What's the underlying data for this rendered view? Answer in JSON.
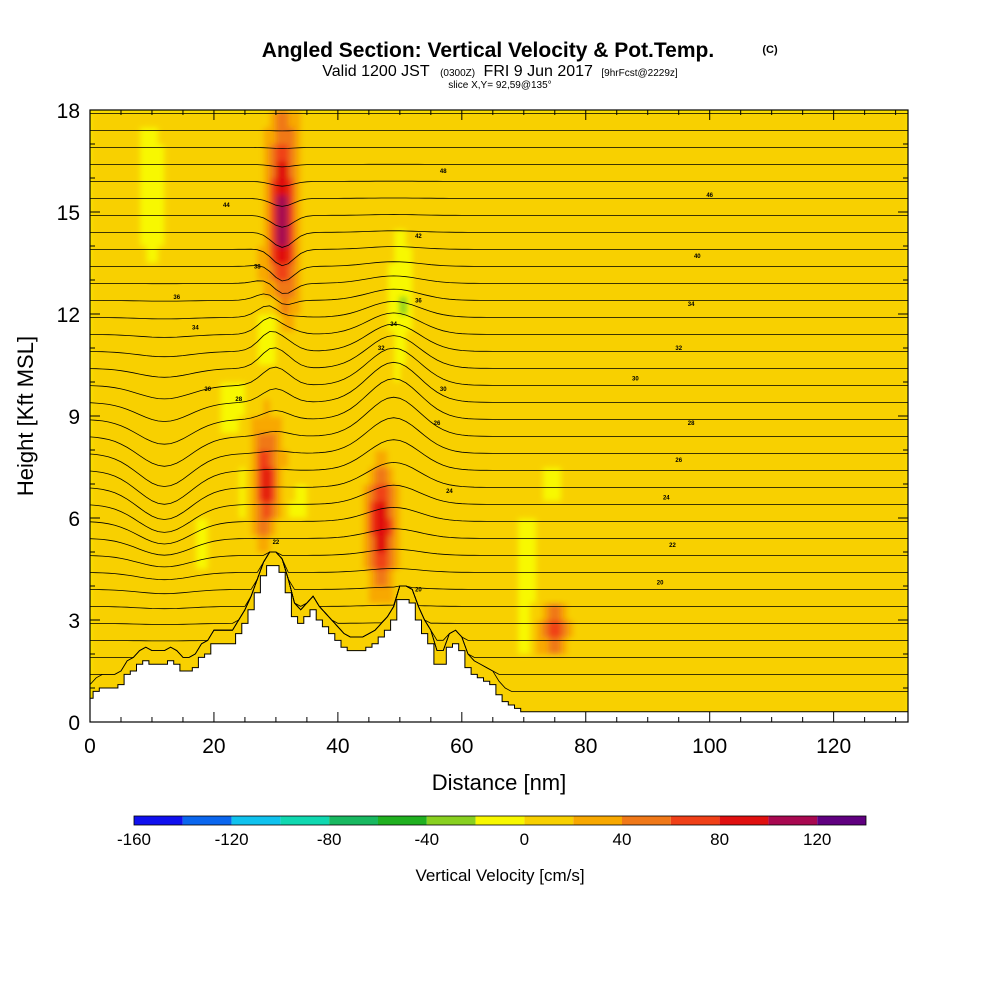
{
  "chart_data": {
    "type": "heatmap",
    "title": "Angled Section: Vertical Velocity & Pot.Temp.",
    "title_mark": "(C)",
    "subtitle": {
      "valid": "Valid 1200 JST",
      "utc": "(0300Z)",
      "date": "FRI 9 Jun 2017",
      "forecast": "[9hrFcst@2229z]",
      "slice": "slice X,Y= 92,59@135°"
    },
    "xlabel": "Distance [nm]",
    "ylabel": "Height [Kft MSL]",
    "xlim": [
      0,
      132
    ],
    "ylim": [
      0,
      18
    ],
    "x_ticks": [
      0,
      20,
      40,
      60,
      80,
      100,
      120
    ],
    "y_ticks": [
      0,
      3,
      6,
      9,
      12,
      15,
      18
    ],
    "colorbar": {
      "label": "Vertical Velocity [cm/s]",
      "levels": [
        -160,
        -140,
        -120,
        -100,
        -80,
        -60,
        -40,
        -20,
        0,
        20,
        40,
        60,
        80,
        100,
        120,
        140
      ],
      "colors": [
        "#1010ee",
        "#0a66ee",
        "#10c2ee",
        "#10d8b0",
        "#18b860",
        "#20b020",
        "#88d020",
        "#f8f800",
        "#f8d000",
        "#f8a800",
        "#f07818",
        "#f04018",
        "#e01010",
        "#a80850",
        "#600080"
      ],
      "tick_labels": [
        -160,
        -120,
        -80,
        -40,
        0,
        40,
        80,
        120
      ]
    },
    "background_field": {
      "name": "Vertical Velocity",
      "units": "cm/s",
      "dominant_range": [
        0,
        20
      ]
    },
    "updrafts": [
      {
        "x": 31,
        "z_range": [
          12.5,
          17.5
        ],
        "peak": 110
      },
      {
        "x": 28,
        "z_range": [
          5.5,
          8.5
        ],
        "peak": 90
      },
      {
        "x": 47,
        "z_range": [
          4,
          7.5
        ],
        "peak": 85
      },
      {
        "x": 75,
        "z_range": [
          2,
          3.5
        ],
        "peak": 60
      }
    ],
    "downdrafts": [
      {
        "x": 10,
        "z_range": [
          14,
          17
        ],
        "peak": -30
      },
      {
        "x": 29,
        "z_range": [
          10.5,
          12.5
        ],
        "peak": -35
      },
      {
        "x": 23,
        "z_range": [
          8.5,
          10
        ],
        "peak": -30
      },
      {
        "x": 50,
        "z_range": [
          10,
          14
        ],
        "peak": -35
      },
      {
        "x": 26,
        "z_range": [
          6,
          8
        ],
        "peak": -30
      },
      {
        "x": 18,
        "z_range": [
          4,
          6
        ],
        "peak": -25
      },
      {
        "x": 34,
        "z_range": [
          6,
          7
        ],
        "peak": -25
      },
      {
        "x": 70,
        "z_range": [
          1.8,
          5
        ],
        "peak": -30
      },
      {
        "x": 75,
        "z_range": [
          6.5,
          7.5
        ],
        "peak": -25
      }
    ],
    "terrain": {
      "x": [
        0,
        1,
        2,
        3,
        4,
        5,
        6,
        7,
        8,
        9,
        10,
        11,
        12,
        13,
        14,
        15,
        16,
        17,
        18,
        19,
        20,
        21,
        22,
        23,
        24,
        25,
        26,
        27,
        28,
        29,
        30,
        31,
        32,
        33,
        34,
        35,
        36,
        37,
        38,
        39,
        40,
        41,
        42,
        43,
        44,
        45,
        46,
        47,
        48,
        49,
        50,
        51,
        52,
        53,
        54,
        55,
        56,
        57,
        58,
        59,
        60,
        61,
        62,
        63,
        64,
        65,
        66,
        67,
        68,
        69,
        70,
        71,
        72,
        73,
        74,
        75,
        76,
        77,
        78,
        79,
        80,
        81,
        82,
        83,
        84,
        85,
        86,
        87,
        88,
        89,
        90,
        91,
        92,
        93,
        94,
        95,
        96,
        97,
        98,
        99,
        100,
        101,
        102,
        103,
        104,
        105,
        106,
        107,
        108,
        109,
        110,
        111,
        112,
        113,
        114,
        115,
        116,
        117,
        118,
        119,
        120,
        121,
        122,
        123,
        124,
        125,
        126,
        127,
        128,
        129,
        130,
        131,
        132
      ],
      "z": [
        0.7,
        0.9,
        1.0,
        1.0,
        1.0,
        1.1,
        1.4,
        1.5,
        1.7,
        1.8,
        1.7,
        1.7,
        1.7,
        1.8,
        1.7,
        1.5,
        1.5,
        1.6,
        1.9,
        2.0,
        2.3,
        2.3,
        2.3,
        2.3,
        2.6,
        2.9,
        3.3,
        3.8,
        4.3,
        4.6,
        4.6,
        4.4,
        3.8,
        3.1,
        2.9,
        3.1,
        3.3,
        3.0,
        2.8,
        2.6,
        2.4,
        2.2,
        2.1,
        2.1,
        2.1,
        2.2,
        2.3,
        2.5,
        2.7,
        3.0,
        3.6,
        3.6,
        3.5,
        3.0,
        2.6,
        2.3,
        1.7,
        1.7,
        2.2,
        2.3,
        2.1,
        1.6,
        1.4,
        1.3,
        1.2,
        1.1,
        0.8,
        0.6,
        0.5,
        0.4,
        0.3,
        0.3,
        0.3,
        0.3,
        0.3,
        0.3,
        0.3,
        0.3,
        0.3,
        0.3,
        0.3,
        0.3,
        0.3,
        0.3,
        0.3,
        0.3,
        0.3,
        0.3,
        0.3,
        0.3,
        0.3,
        0.3,
        0.3,
        0.3,
        0.3,
        0.3,
        0.3,
        0.3,
        0.3,
        0.3,
        0.3,
        0.3,
        0.3,
        0.3,
        0.3,
        0.3,
        0.3,
        0.3,
        0.3,
        0.3,
        0.3,
        0.3,
        0.3,
        0.3,
        0.3,
        0.3,
        0.3,
        0.3,
        0.3,
        0.3,
        0.3,
        0.3,
        0.3,
        0.3,
        0.3,
        0.3,
        0.3,
        0.3,
        0.3,
        0.3,
        0.3,
        0.3,
        0.3
      ]
    },
    "pot_temp_contours": {
      "name": "Pot.Temp.",
      "units": "C",
      "labels": [
        {
          "value": 48,
          "x": 57,
          "z": 16.2
        },
        {
          "value": 46,
          "x": 100,
          "z": 15.5
        },
        {
          "value": 44,
          "x": 22,
          "z": 15.2
        },
        {
          "value": 42,
          "x": 53,
          "z": 14.3
        },
        {
          "value": 40,
          "x": 98,
          "z": 13.7
        },
        {
          "value": 38,
          "x": 27,
          "z": 13.4
        },
        {
          "value": 36,
          "x": 53,
          "z": 12.4
        },
        {
          "value": 36,
          "x": 14,
          "z": 12.5
        },
        {
          "value": 34,
          "x": 97,
          "z": 12.3
        },
        {
          "value": 34,
          "x": 49,
          "z": 11.7
        },
        {
          "value": 34,
          "x": 17,
          "z": 11.6
        },
        {
          "value": 32,
          "x": 47,
          "z": 11.0
        },
        {
          "value": 32,
          "x": 95,
          "z": 11.0
        },
        {
          "value": 30,
          "x": 88,
          "z": 10.1
        },
        {
          "value": 30,
          "x": 57,
          "z": 9.8
        },
        {
          "value": 30,
          "x": 19,
          "z": 9.8
        },
        {
          "value": 28,
          "x": 24,
          "z": 9.5
        },
        {
          "value": 28,
          "x": 97,
          "z": 8.8
        },
        {
          "value": 26,
          "x": 56,
          "z": 8.8
        },
        {
          "value": 26,
          "x": 95,
          "z": 7.7
        },
        {
          "value": 24,
          "x": 58,
          "z": 6.8
        },
        {
          "value": 24,
          "x": 93,
          "z": 6.6
        },
        {
          "value": 22,
          "x": 30,
          "z": 5.3
        },
        {
          "value": 22,
          "x": 94,
          "z": 5.2
        },
        {
          "value": 20,
          "x": 92,
          "z": 4.1
        },
        {
          "value": 20,
          "x": 53,
          "z": 3.9
        }
      ]
    },
    "contour_label_text": [
      "48",
      "46",
      "44",
      "42",
      "40",
      "38",
      "36",
      "36",
      "34",
      "34",
      "34",
      "32",
      "32",
      "30",
      "30",
      "30",
      "28",
      "28",
      "26",
      "26",
      "24",
      "24",
      "22",
      "22",
      "20",
      "20"
    ]
  }
}
